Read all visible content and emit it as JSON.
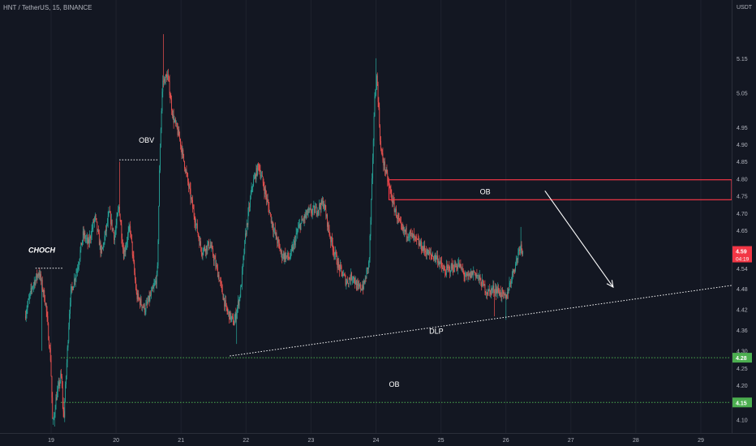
{
  "header": {
    "title": "HNT / TetherUS, 15, BINANCE",
    "unit": "USDT"
  },
  "price_labels": {
    "current": "4.59",
    "countdown": "04:19",
    "level_high": "4.28",
    "level_low": "4.15"
  },
  "colors": {
    "background": "#131722",
    "up": "#26a69a",
    "down": "#ef5350",
    "ob_box": "#f23645",
    "level_line": "#4caf50",
    "grid": "#1e222d",
    "axis_text": "#b2b5be",
    "current_tag": "#f23645"
  },
  "chart_data": {
    "type": "candlestick",
    "title": "HNT / TetherUS, 15, BINANCE",
    "ylabel": "USDT",
    "ylim": [
      4.08,
      5.22
    ],
    "y_ticks": [
      4.1,
      4.15,
      4.2,
      4.25,
      4.3,
      4.36,
      4.42,
      4.48,
      4.54,
      4.59,
      4.65,
      4.7,
      4.75,
      4.8,
      4.85,
      4.9,
      4.95,
      5.05,
      5.15
    ],
    "xlim": [
      18.6,
      29.45
    ],
    "x_ticks": [
      19,
      20,
      21,
      22,
      23,
      24,
      25,
      26,
      27,
      28,
      29
    ],
    "grid": false,
    "current_price": 4.59,
    "anchors": [
      [
        18.6,
        4.4
      ],
      [
        18.72,
        4.49
      ],
      [
        18.82,
        4.53
      ],
      [
        18.92,
        4.44
      ],
      [
        19.0,
        4.27
      ],
      [
        19.03,
        4.08
      ],
      [
        19.08,
        4.16
      ],
      [
        19.16,
        4.23
      ],
      [
        19.2,
        4.1
      ],
      [
        19.3,
        4.46
      ],
      [
        19.42,
        4.55
      ],
      [
        19.5,
        4.64
      ],
      [
        19.58,
        4.61
      ],
      [
        19.68,
        4.69
      ],
      [
        19.78,
        4.58
      ],
      [
        19.9,
        4.7
      ],
      [
        19.98,
        4.63
      ],
      [
        20.05,
        4.72
      ],
      [
        20.12,
        4.58
      ],
      [
        20.22,
        4.66
      ],
      [
        20.32,
        4.46
      ],
      [
        20.45,
        4.42
      ],
      [
        20.58,
        4.48
      ],
      [
        20.64,
        4.52
      ],
      [
        20.68,
        4.88
      ],
      [
        20.72,
        5.08
      ],
      [
        20.8,
        5.1
      ],
      [
        20.88,
        4.98
      ],
      [
        20.98,
        4.92
      ],
      [
        21.08,
        4.82
      ],
      [
        21.2,
        4.7
      ],
      [
        21.32,
        4.59
      ],
      [
        21.45,
        4.61
      ],
      [
        21.58,
        4.52
      ],
      [
        21.7,
        4.42
      ],
      [
        21.82,
        4.38
      ],
      [
        21.92,
        4.47
      ],
      [
        22.0,
        4.64
      ],
      [
        22.1,
        4.78
      ],
      [
        22.2,
        4.84
      ],
      [
        22.3,
        4.76
      ],
      [
        22.42,
        4.66
      ],
      [
        22.55,
        4.58
      ],
      [
        22.68,
        4.57
      ],
      [
        22.82,
        4.66
      ],
      [
        22.95,
        4.7
      ],
      [
        23.08,
        4.71
      ],
      [
        23.2,
        4.73
      ],
      [
        23.3,
        4.63
      ],
      [
        23.42,
        4.55
      ],
      [
        23.55,
        4.5
      ],
      [
        23.65,
        4.52
      ],
      [
        23.72,
        4.48
      ],
      [
        23.82,
        4.49
      ],
      [
        23.9,
        4.56
      ],
      [
        23.95,
        4.82
      ],
      [
        23.98,
        5.02
      ],
      [
        24.02,
        5.1
      ],
      [
        24.08,
        4.88
      ],
      [
        24.18,
        4.8
      ],
      [
        24.28,
        4.72
      ],
      [
        24.4,
        4.65
      ],
      [
        24.52,
        4.64
      ],
      [
        24.62,
        4.62
      ],
      [
        24.72,
        4.6
      ],
      [
        24.82,
        4.58
      ],
      [
        24.95,
        4.57
      ],
      [
        25.05,
        4.53
      ],
      [
        25.15,
        4.54
      ],
      [
        25.28,
        4.55
      ],
      [
        25.4,
        4.51
      ],
      [
        25.52,
        4.53
      ],
      [
        25.62,
        4.5
      ],
      [
        25.72,
        4.47
      ],
      [
        25.82,
        4.48
      ],
      [
        25.92,
        4.47
      ],
      [
        26.0,
        4.45
      ],
      [
        26.1,
        4.52
      ],
      [
        26.18,
        4.57
      ],
      [
        26.22,
        4.61
      ],
      [
        26.26,
        4.59
      ]
    ],
    "annotations": [
      {
        "text": "CHOCH",
        "x": 18.65,
        "y": 4.585,
        "style": "bold-italic"
      },
      {
        "text": "OBV",
        "x": 20.35,
        "y": 4.905
      },
      {
        "text": "OB",
        "x": 25.6,
        "y": 4.755
      },
      {
        "text": "DLP",
        "x": 24.82,
        "y": 4.35
      },
      {
        "text": "OB",
        "x": 24.2,
        "y": 4.195
      }
    ],
    "zones": [
      {
        "type": "box",
        "x0": 24.2,
        "x1": 29.45,
        "y0": 4.739,
        "y1": 4.797,
        "color": "#f23645"
      }
    ],
    "levels": [
      {
        "y": 4.28,
        "x0": 19.15,
        "x1": 29.45,
        "style": "dotted",
        "color": "#4caf50"
      },
      {
        "y": 4.15,
        "x0": 19.15,
        "x1": 29.45,
        "style": "dotted",
        "color": "#4caf50"
      },
      {
        "y": 4.54,
        "x0": 18.76,
        "x1": 19.18,
        "style": "dotted",
        "color": "#ffffff"
      },
      {
        "y": 4.855,
        "x0": 20.05,
        "x1": 20.64,
        "style": "dotted",
        "color": "#ffffff"
      }
    ],
    "trendline": {
      "from": [
        21.75,
        4.285
      ],
      "to": [
        29.45,
        4.49
      ],
      "style": "dotted",
      "color": "#ffffff"
    },
    "arrow": {
      "from": [
        26.6,
        4.765
      ],
      "to": [
        27.65,
        4.485
      ],
      "color": "#ffffff"
    }
  }
}
